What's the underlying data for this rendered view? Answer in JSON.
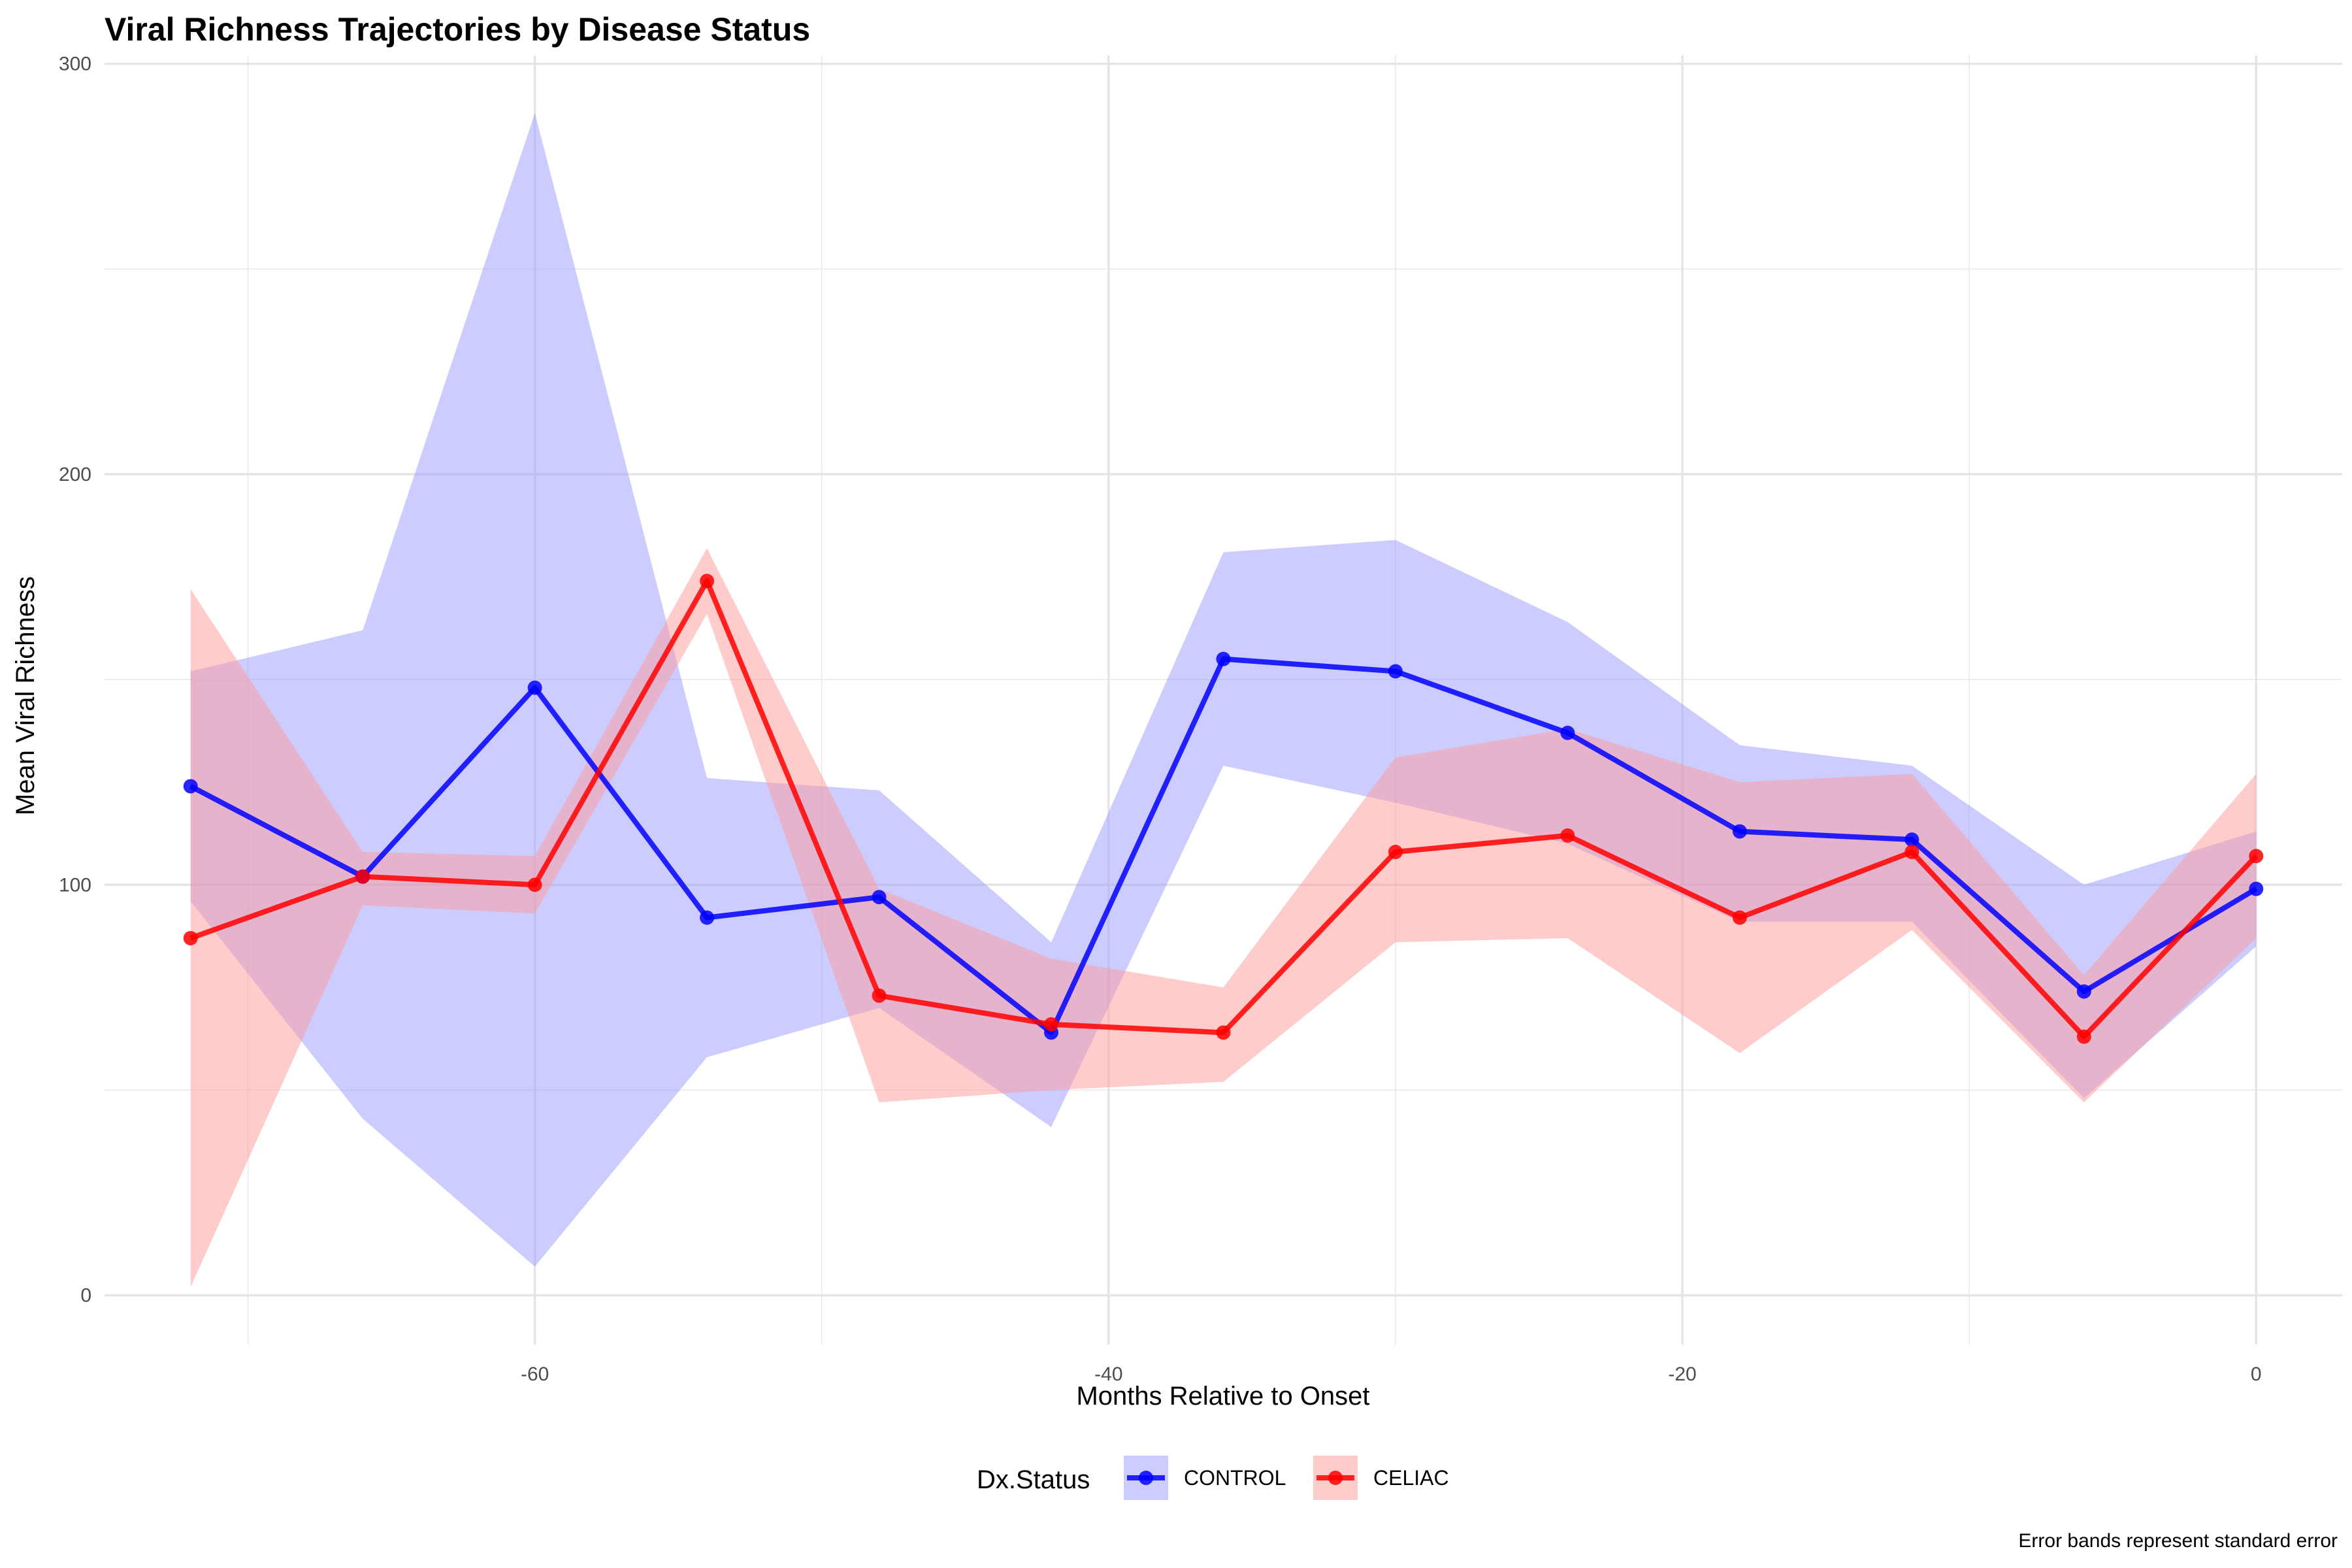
{
  "chart_data": {
    "type": "line",
    "title": "Viral Richness Trajectories by Disease Status",
    "xlabel": "Months Relative to Onset",
    "ylabel": "Mean Viral Richness",
    "caption": "Error bands represent standard error",
    "xlim": [
      -75,
      3
    ],
    "ylim": [
      -12,
      302
    ],
    "x_ticks": [
      -60,
      -40,
      -20,
      0
    ],
    "y_ticks": [
      0,
      100,
      200,
      300
    ],
    "x_tick_labels": [
      "-60",
      "-40",
      "-20",
      "0"
    ],
    "y_tick_labels": [
      "0",
      "100",
      "200",
      "300"
    ],
    "grid": true,
    "legend_position": "bottom",
    "legend_title": "Dx.Status",
    "x": [
      -72,
      -66,
      -60,
      -54,
      -48,
      -42,
      -36,
      -30,
      -24,
      -18,
      -12,
      -6,
      0
    ],
    "series": [
      {
        "name": "CONTROL",
        "color": "#0000ff",
        "band_color": "#9999ff",
        "values": [
          124,
          102,
          148,
          92,
          97,
          64,
          155,
          152,
          137,
          113,
          111,
          74,
          99
        ],
        "lower": [
          96,
          43,
          7,
          58,
          70,
          41,
          129,
          120,
          110,
          91,
          91,
          48,
          85
        ],
        "upper": [
          152,
          162,
          288,
          126,
          123,
          86,
          181,
          184,
          164,
          134,
          129,
          100,
          113
        ]
      },
      {
        "name": "CELIAC",
        "color": "#ff0000",
        "band_color": "#ff9999",
        "values": [
          87,
          102,
          100,
          174,
          73,
          66,
          64,
          108,
          112,
          92,
          108,
          63,
          107
        ],
        "lower": [
          2,
          95,
          93,
          166,
          47,
          50,
          52,
          86,
          87,
          59,
          89,
          47,
          87
        ],
        "upper": [
          172,
          108,
          107,
          182,
          99,
          82,
          75,
          131,
          138,
          125,
          127,
          78,
          127
        ]
      }
    ]
  }
}
